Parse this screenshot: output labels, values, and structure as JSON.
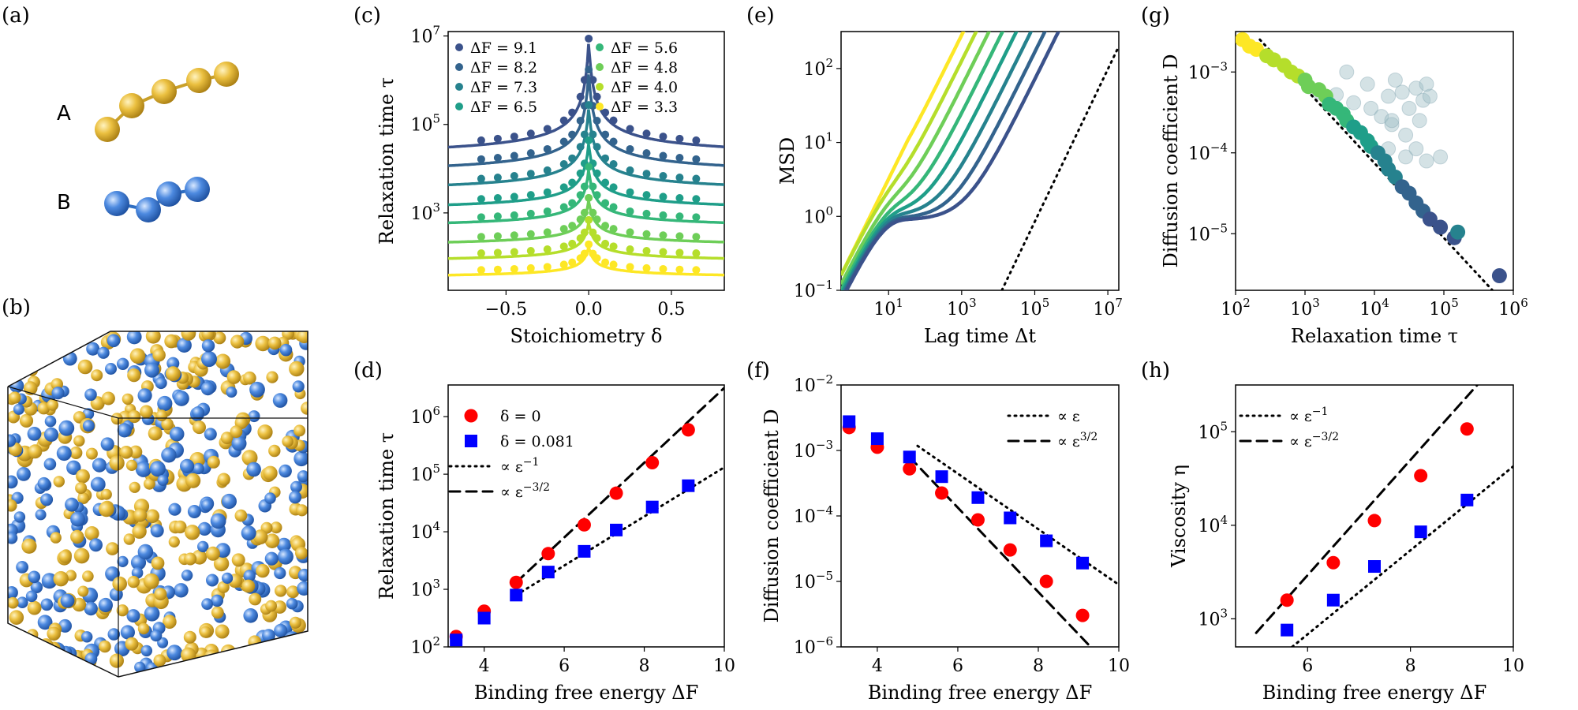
{
  "figure": {
    "panel_labels": [
      "(a)",
      "(b)",
      "(c)",
      "(d)",
      "(e)",
      "(f)",
      "(g)",
      "(h)"
    ],
    "illustration": {
      "molecule_a_label": "A",
      "molecule_b_label": "B",
      "colors": {
        "A": "#e8b830",
        "B": "#3f7fd6"
      }
    }
  },
  "colors": {
    "viridis": [
      "#3b528b",
      "#33638d",
      "#26828e",
      "#1f9e89",
      "#35b779",
      "#6ece58",
      "#b5de2b",
      "#fde725"
    ],
    "red": "#ff0000",
    "blue": "#0000ff"
  },
  "chart_data": [
    {
      "id": "c",
      "type": "scatter+line",
      "xlabel": "Stoichiometry δ",
      "ylabel": "Relaxation time τ",
      "xlim": [
        -0.85,
        0.82
      ],
      "ylim_log10": [
        1.25,
        7.1
      ],
      "yscale": "log",
      "xticks": [
        {
          "v": -0.5,
          "t": "−0.5"
        },
        {
          "v": 0,
          "t": "0.0"
        },
        {
          "v": 0.5,
          "t": "0.5"
        }
      ],
      "yticks": [
        {
          "v": 3,
          "t": "10^3"
        },
        {
          "v": 5,
          "t": "10^5"
        },
        {
          "v": 7,
          "t": "10^7"
        }
      ],
      "delta_points": [
        -0.65,
        -0.55,
        -0.45,
        -0.35,
        -0.25,
        -0.15,
        -0.1,
        -0.05,
        -0.025,
        0,
        0.025,
        0.05,
        0.1,
        0.15,
        0.25,
        0.35,
        0.45,
        0.55,
        0.65
      ],
      "series": [
        {
          "name": "ΔF = 9.1",
          "dF": 9.1,
          "base_log10": 4.14,
          "peak_log10": 6.9
        },
        {
          "name": "ΔF = 8.2",
          "dF": 8.2,
          "base_log10": 3.76,
          "peak_log10": 6.2
        },
        {
          "name": "ΔF = 7.3",
          "dF": 7.3,
          "base_log10": 3.38,
          "peak_log10": 5.4
        },
        {
          "name": "ΔF = 6.5",
          "dF": 6.5,
          "base_log10": 2.98,
          "peak_log10": 4.6
        },
        {
          "name": "ΔF = 5.6",
          "dF": 5.6,
          "base_log10": 2.6,
          "peak_log10": 4.0
        },
        {
          "name": "ΔF = 4.8",
          "dF": 4.8,
          "base_log10": 2.2,
          "peak_log10": 3.3
        },
        {
          "name": "ΔF = 4.0",
          "dF": 4.0,
          "base_log10": 1.85,
          "peak_log10": 2.8
        },
        {
          "name": "ΔF = 3.3",
          "dF": 3.3,
          "base_log10": 1.5,
          "peak_log10": 2.25
        }
      ]
    },
    {
      "id": "d",
      "type": "scatter",
      "xlabel": "Binding free energy ΔF",
      "ylabel": "Relaxation time τ",
      "xlim": [
        3.1,
        10
      ],
      "ylim_log10": [
        2,
        6.55
      ],
      "yscale": "log",
      "xticks": [
        {
          "v": 4,
          "t": "4"
        },
        {
          "v": 6,
          "t": "6"
        },
        {
          "v": 8,
          "t": "8"
        },
        {
          "v": 10,
          "t": "10"
        }
      ],
      "yticks": [
        {
          "v": 2,
          "t": "10^2"
        },
        {
          "v": 3,
          "t": "10^3"
        },
        {
          "v": 4,
          "t": "10^4"
        },
        {
          "v": 5,
          "t": "10^5"
        },
        {
          "v": 6,
          "t": "10^6"
        }
      ],
      "x": [
        3.3,
        4.0,
        4.8,
        5.6,
        6.5,
        7.3,
        8.2,
        9.1
      ],
      "series": [
        {
          "name": "δ = 0",
          "marker": "circle",
          "log10_values": [
            2.18,
            2.62,
            3.12,
            3.62,
            4.12,
            4.67,
            5.2,
            5.77
          ]
        },
        {
          "name": "δ = 0.081",
          "marker": "square",
          "log10_values": [
            2.12,
            2.5,
            2.9,
            3.3,
            3.66,
            4.03,
            4.43,
            4.8
          ]
        }
      ],
      "guides": [
        {
          "name": "∝ ε^−1",
          "style": "dotted",
          "from": [
            4.8,
            2.9
          ],
          "to": [
            10,
            5.12
          ]
        },
        {
          "name": "∝ ε^−3/2",
          "style": "dashed",
          "from": [
            4.8,
            3.12
          ],
          "to": [
            10,
            6.5
          ]
        }
      ]
    },
    {
      "id": "e",
      "type": "line",
      "xlabel": "Lag time Δt",
      "ylabel": "MSD",
      "xlim_log10": [
        -0.3,
        7.3
      ],
      "ylim_log10": [
        -1,
        2.5
      ],
      "xscale": "log",
      "yscale": "log",
      "xticks": [
        {
          "v": 1,
          "t": "10^1"
        },
        {
          "v": 3,
          "t": "10^3"
        },
        {
          "v": 5,
          "t": "10^5"
        },
        {
          "v": 7,
          "t": "10^7"
        }
      ],
      "yticks": [
        {
          "v": -1,
          "t": "10^−1"
        },
        {
          "v": 0,
          "t": "10^0"
        },
        {
          "v": 1,
          "t": "10^1"
        },
        {
          "v": 2,
          "t": "10^2"
        }
      ],
      "series": [
        {
          "dF": 9.1,
          "plateau_log10": -0.05,
          "diffusive_log10": 4.15
        },
        {
          "dF": 8.2,
          "plateau_log10": -0.03,
          "diffusive_log10": 3.78
        },
        {
          "dF": 7.3,
          "plateau_log10": 0.0,
          "diffusive_log10": 3.4
        },
        {
          "dF": 6.5,
          "plateau_log10": 0.02,
          "diffusive_log10": 3.0
        },
        {
          "dF": 5.6,
          "plateau_log10": 0.04,
          "diffusive_log10": 2.62
        },
        {
          "dF": 4.8,
          "plateau_log10": 0.06,
          "diffusive_log10": 2.25
        },
        {
          "dF": 4.0,
          "plateau_log10": 0.08,
          "diffusive_log10": 1.9
        },
        {
          "dF": 3.3,
          "plateau_log10": 0.1,
          "diffusive_log10": 1.55
        }
      ],
      "guide": {
        "style": "dotted",
        "from": [
          4.1,
          -1
        ],
        "to": [
          7.3,
          2.3
        ]
      }
    },
    {
      "id": "f",
      "type": "scatter",
      "xlabel": "Binding free energy ΔF",
      "ylabel": "Diffusion coefficient D",
      "xlim": [
        3.1,
        10
      ],
      "ylim_log10": [
        -6,
        -2
      ],
      "yscale": "log",
      "xticks": [
        {
          "v": 4,
          "t": "4"
        },
        {
          "v": 6,
          "t": "6"
        },
        {
          "v": 8,
          "t": "8"
        },
        {
          "v": 10,
          "t": "10"
        }
      ],
      "yticks": [
        {
          "v": -6,
          "t": "10^−6"
        },
        {
          "v": -5,
          "t": "10^−5"
        },
        {
          "v": -4,
          "t": "10^−4"
        },
        {
          "v": -3,
          "t": "10^−3"
        },
        {
          "v": -2,
          "t": "10^−2"
        }
      ],
      "x": [
        3.3,
        4.0,
        4.8,
        5.6,
        6.5,
        7.3,
        8.2,
        9.1
      ],
      "series": [
        {
          "name": "δ = 0",
          "marker": "circle",
          "log10_values": [
            -2.65,
            -2.95,
            -3.28,
            -3.65,
            -4.06,
            -4.52,
            -5.0,
            -5.52
          ]
        },
        {
          "name": "δ = 0.081",
          "marker": "square",
          "log10_values": [
            -2.56,
            -2.82,
            -3.1,
            -3.4,
            -3.72,
            -4.03,
            -4.38,
            -4.72
          ]
        }
      ],
      "guides": [
        {
          "name": "∝ ε",
          "style": "dotted",
          "from": [
            5.0,
            -2.93
          ],
          "to": [
            10,
            -5.05
          ]
        },
        {
          "name": "∝ ε^3/2",
          "style": "dashed",
          "from": [
            4.8,
            -3.1
          ],
          "to": [
            9.3,
            -6.0
          ]
        }
      ]
    },
    {
      "id": "g",
      "type": "scatter",
      "xlabel": "Relaxation time τ",
      "ylabel": "Diffusion coefficient D",
      "xlim_log10": [
        2,
        6
      ],
      "ylim_log10": [
        -5.7,
        -2.5
      ],
      "xscale": "log",
      "yscale": "log",
      "xticks": [
        {
          "v": 2,
          "t": "10^2"
        },
        {
          "v": 3,
          "t": "10^3"
        },
        {
          "v": 4,
          "t": "10^4"
        },
        {
          "v": 5,
          "t": "10^5"
        },
        {
          "v": 6,
          "t": "10^6"
        }
      ],
      "yticks": [
        {
          "v": -5,
          "t": "10^−5"
        },
        {
          "v": -4,
          "t": "10^−4"
        },
        {
          "v": -3,
          "t": "10^−3"
        }
      ],
      "points": [
        [
          2.1,
          -2.6,
          7
        ],
        [
          2.2,
          -2.68,
          7
        ],
        [
          2.3,
          -2.72,
          7
        ],
        [
          2.45,
          -2.8,
          6
        ],
        [
          2.55,
          -2.85,
          6
        ],
        [
          2.7,
          -2.92,
          6
        ],
        [
          2.8,
          -3.0,
          6
        ],
        [
          2.9,
          -3.05,
          6
        ],
        [
          3.0,
          -3.1,
          5
        ],
        [
          3.05,
          -3.18,
          5
        ],
        [
          3.2,
          -3.22,
          5
        ],
        [
          3.3,
          -3.3,
          5
        ],
        [
          3.35,
          -3.4,
          4
        ],
        [
          3.45,
          -3.45,
          4
        ],
        [
          3.55,
          -3.52,
          4
        ],
        [
          3.6,
          -3.6,
          4
        ],
        [
          3.7,
          -3.68,
          3
        ],
        [
          3.8,
          -3.75,
          3
        ],
        [
          3.9,
          -3.85,
          3
        ],
        [
          3.95,
          -3.92,
          3
        ],
        [
          4.05,
          -4.0,
          2
        ],
        [
          4.15,
          -4.1,
          2
        ],
        [
          4.2,
          -4.2,
          2
        ],
        [
          4.3,
          -4.3,
          2
        ],
        [
          4.4,
          -4.42,
          1
        ],
        [
          4.5,
          -4.5,
          1
        ],
        [
          4.6,
          -4.62,
          1
        ],
        [
          4.7,
          -4.72,
          1
        ],
        [
          4.8,
          -4.82,
          0
        ],
        [
          4.95,
          -4.92,
          0
        ],
        [
          5.15,
          -5.05,
          0
        ],
        [
          5.2,
          -4.98,
          2
        ],
        [
          5.8,
          -5.52,
          0
        ]
      ],
      "faded_points": [
        [
          3.2,
          -3.25
        ],
        [
          3.45,
          -3.28
        ],
        [
          3.7,
          -3.38
        ],
        [
          3.95,
          -3.45
        ],
        [
          4.1,
          -3.55
        ],
        [
          4.25,
          -3.65
        ],
        [
          4.45,
          -3.78
        ],
        [
          3.6,
          -3.0
        ],
        [
          3.9,
          -3.15
        ],
        [
          4.2,
          -3.3
        ],
        [
          4.5,
          -3.45
        ],
        [
          4.65,
          -3.6
        ],
        [
          4.4,
          -3.25
        ],
        [
          4.7,
          -3.35
        ],
        [
          4.3,
          -3.1
        ],
        [
          4.6,
          -3.2
        ],
        [
          4.2,
          -3.95
        ],
        [
          4.45,
          -4.05
        ],
        [
          4.75,
          -4.1
        ],
        [
          4.6,
          -3.95
        ],
        [
          4.8,
          -3.3
        ],
        [
          4.75,
          -3.15
        ],
        [
          4.95,
          -4.05
        ],
        [
          4.25,
          -3.6
        ]
      ],
      "guide": {
        "style": "dotted",
        "from": [
          2.35,
          -2.6
        ],
        "to": [
          5.7,
          -5.7
        ]
      }
    },
    {
      "id": "h",
      "type": "scatter",
      "xlabel": "Binding free energy ΔF",
      "ylabel": "Viscosity η",
      "xlim": [
        4.6,
        10
      ],
      "ylim_log10": [
        2.7,
        5.5
      ],
      "yscale": "log",
      "xticks": [
        {
          "v": 6,
          "t": "6"
        },
        {
          "v": 8,
          "t": "8"
        },
        {
          "v": 10,
          "t": "10"
        }
      ],
      "yticks": [
        {
          "v": 3,
          "t": "10^3"
        },
        {
          "v": 4,
          "t": "10^4"
        },
        {
          "v": 5,
          "t": "10^5"
        }
      ],
      "x": [
        5.6,
        6.5,
        7.3,
        8.2,
        9.1
      ],
      "series": [
        {
          "name": "δ = 0",
          "marker": "circle",
          "log10_values": [
            3.2,
            3.6,
            4.05,
            4.53,
            5.03
          ]
        },
        {
          "name": "δ = 0.081",
          "marker": "square",
          "log10_values": [
            2.88,
            3.2,
            3.56,
            3.93,
            4.27
          ]
        }
      ],
      "guides": [
        {
          "name": "∝ ε^−1",
          "style": "dotted",
          "from": [
            5.7,
            2.7
          ],
          "to": [
            10,
            4.63
          ]
        },
        {
          "name": "∝ ε^−3/2",
          "style": "dashed",
          "from": [
            5.0,
            2.85
          ],
          "to": [
            9.3,
            5.5
          ]
        }
      ]
    }
  ]
}
